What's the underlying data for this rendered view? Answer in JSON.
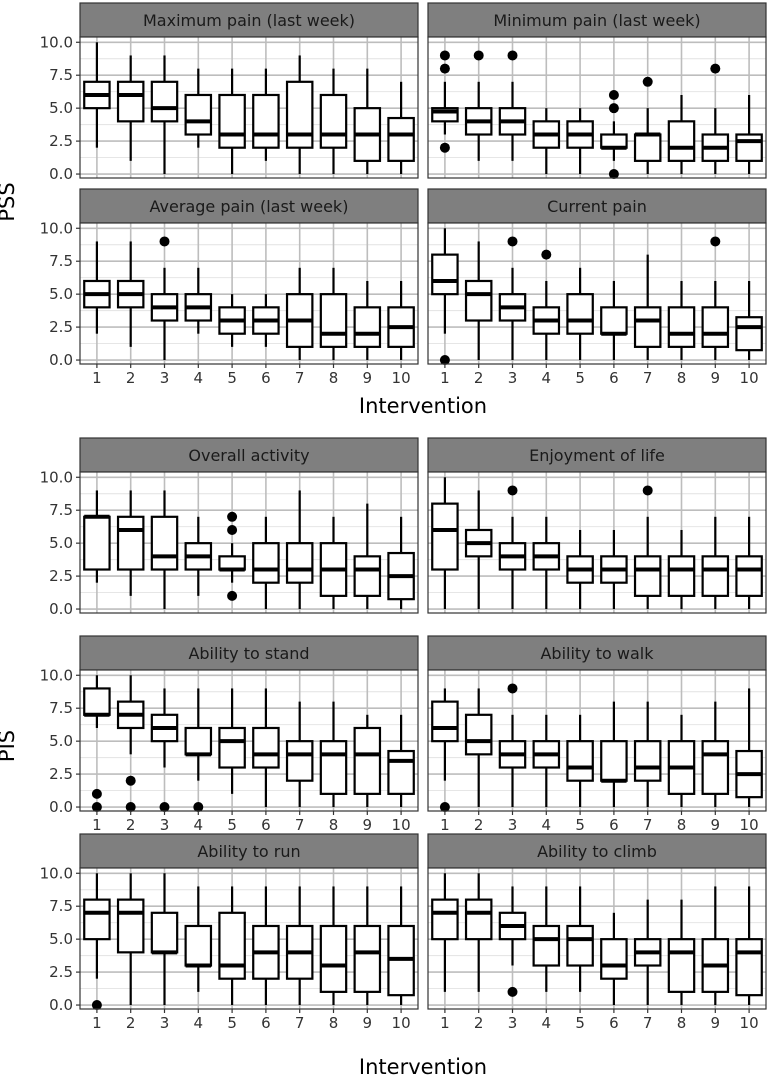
{
  "figure": {
    "top_block_ylabel": "PSS",
    "bottom_block_ylabel": "PIS",
    "xlabel": "Intervention"
  },
  "chart_data": [
    {
      "type": "boxplot",
      "title": "Maximum pain (last week)",
      "categories": [
        "1",
        "2",
        "3",
        "4",
        "5",
        "6",
        "7",
        "8",
        "9",
        "10"
      ],
      "yticks": [
        "0.0",
        "2.5",
        "5.0",
        "7.5",
        "10.0"
      ],
      "ylim": [
        -0.3,
        10.4
      ],
      "grid": true,
      "boxes": [
        {
          "min": 2,
          "q1": 5,
          "median": 6,
          "q3": 7,
          "max": 10,
          "outliers": []
        },
        {
          "min": 1,
          "q1": 4,
          "median": 6,
          "q3": 7,
          "max": 9,
          "outliers": []
        },
        {
          "min": 0,
          "q1": 4,
          "median": 5,
          "q3": 7,
          "max": 9,
          "outliers": []
        },
        {
          "min": 2,
          "q1": 3,
          "median": 4,
          "q3": 6,
          "max": 8,
          "outliers": []
        },
        {
          "min": 0,
          "q1": 2,
          "median": 3,
          "q3": 6,
          "max": 8,
          "outliers": []
        },
        {
          "min": 1,
          "q1": 2,
          "median": 3,
          "q3": 6,
          "max": 8,
          "outliers": []
        },
        {
          "min": 0,
          "q1": 2,
          "median": 3,
          "q3": 7,
          "max": 9,
          "outliers": []
        },
        {
          "min": 0,
          "q1": 2,
          "median": 3,
          "q3": 6,
          "max": 8,
          "outliers": []
        },
        {
          "min": 0,
          "q1": 1,
          "median": 3,
          "q3": 5,
          "max": 8,
          "outliers": []
        },
        {
          "min": 0,
          "q1": 1,
          "median": 3,
          "q3": 4.25,
          "max": 7,
          "outliers": []
        }
      ]
    },
    {
      "type": "boxplot",
      "title": "Minimum pain (last week)",
      "categories": [
        "1",
        "2",
        "3",
        "4",
        "5",
        "6",
        "7",
        "8",
        "9",
        "10"
      ],
      "yticks": [
        "0.0",
        "2.5",
        "5.0",
        "7.5",
        "10.0"
      ],
      "ylim": [
        -0.3,
        10.4
      ],
      "grid": true,
      "boxes": [
        {
          "min": 3,
          "q1": 4,
          "median": 4.75,
          "q3": 5,
          "max": 7,
          "outliers": [
            2,
            8,
            9
          ]
        },
        {
          "min": 1,
          "q1": 3,
          "median": 4,
          "q3": 5,
          "max": 7,
          "outliers": [
            9
          ]
        },
        {
          "min": 1,
          "q1": 3,
          "median": 4,
          "q3": 5,
          "max": 7,
          "outliers": [
            9
          ]
        },
        {
          "min": 0,
          "q1": 2,
          "median": 3,
          "q3": 4,
          "max": 5,
          "outliers": []
        },
        {
          "min": 0,
          "q1": 2,
          "median": 3,
          "q3": 4,
          "max": 5,
          "outliers": []
        },
        {
          "min": 1,
          "q1": 2,
          "median": 2,
          "q3": 3,
          "max": 4,
          "outliers": [
            0,
            5,
            6
          ]
        },
        {
          "min": 0,
          "q1": 1,
          "median": 3,
          "q3": 3,
          "max": 5,
          "outliers": [
            7
          ]
        },
        {
          "min": 0,
          "q1": 1,
          "median": 2,
          "q3": 4,
          "max": 6,
          "outliers": []
        },
        {
          "min": 0,
          "q1": 1,
          "median": 2,
          "q3": 3,
          "max": 5,
          "outliers": [
            8
          ]
        },
        {
          "min": 0,
          "q1": 1,
          "median": 2.5,
          "q3": 3,
          "max": 6,
          "outliers": []
        }
      ]
    },
    {
      "type": "boxplot",
      "title": "Average pain (last week)",
      "categories": [
        "1",
        "2",
        "3",
        "4",
        "5",
        "6",
        "7",
        "8",
        "9",
        "10"
      ],
      "yticks": [
        "0.0",
        "2.5",
        "5.0",
        "7.5",
        "10.0"
      ],
      "ylim": [
        -0.3,
        10.4
      ],
      "grid": true,
      "boxes": [
        {
          "min": 2,
          "q1": 4,
          "median": 5,
          "q3": 6,
          "max": 9,
          "outliers": []
        },
        {
          "min": 1,
          "q1": 4,
          "median": 5,
          "q3": 6,
          "max": 9,
          "outliers": []
        },
        {
          "min": 0,
          "q1": 3,
          "median": 4,
          "q3": 5,
          "max": 7,
          "outliers": [
            9
          ]
        },
        {
          "min": 2,
          "q1": 3,
          "median": 4,
          "q3": 5,
          "max": 7,
          "outliers": []
        },
        {
          "min": 1,
          "q1": 2,
          "median": 3,
          "q3": 4,
          "max": 5,
          "outliers": []
        },
        {
          "min": 1,
          "q1": 2,
          "median": 3,
          "q3": 4,
          "max": 5,
          "outliers": []
        },
        {
          "min": 0,
          "q1": 1,
          "median": 3,
          "q3": 5,
          "max": 7,
          "outliers": []
        },
        {
          "min": 0,
          "q1": 1,
          "median": 2,
          "q3": 5,
          "max": 7,
          "outliers": []
        },
        {
          "min": 0,
          "q1": 1,
          "median": 2,
          "q3": 4,
          "max": 6,
          "outliers": []
        },
        {
          "min": 0,
          "q1": 1,
          "median": 2.5,
          "q3": 4,
          "max": 6,
          "outliers": []
        }
      ]
    },
    {
      "type": "boxplot",
      "title": "Current pain",
      "categories": [
        "1",
        "2",
        "3",
        "4",
        "5",
        "6",
        "7",
        "8",
        "9",
        "10"
      ],
      "yticks": [
        "0.0",
        "2.5",
        "5.0",
        "7.5",
        "10.0"
      ],
      "ylim": [
        -0.3,
        10.4
      ],
      "grid": true,
      "boxes": [
        {
          "min": 2,
          "q1": 5,
          "median": 6,
          "q3": 8,
          "max": 10,
          "outliers": [
            0
          ]
        },
        {
          "min": 0,
          "q1": 3,
          "median": 5,
          "q3": 6,
          "max": 9,
          "outliers": []
        },
        {
          "min": 0,
          "q1": 3,
          "median": 4,
          "q3": 5,
          "max": 7,
          "outliers": [
            9
          ]
        },
        {
          "min": 0,
          "q1": 2,
          "median": 3,
          "q3": 4,
          "max": 6,
          "outliers": [
            8
          ]
        },
        {
          "min": 0,
          "q1": 2,
          "median": 3,
          "q3": 5,
          "max": 7,
          "outliers": []
        },
        {
          "min": 0,
          "q1": 2,
          "median": 2,
          "q3": 4,
          "max": 6,
          "outliers": []
        },
        {
          "min": 0,
          "q1": 1,
          "median": 3,
          "q3": 4,
          "max": 8,
          "outliers": []
        },
        {
          "min": 0,
          "q1": 1,
          "median": 2,
          "q3": 4,
          "max": 6,
          "outliers": []
        },
        {
          "min": 0,
          "q1": 1,
          "median": 2,
          "q3": 4,
          "max": 6,
          "outliers": [
            9
          ]
        },
        {
          "min": 0,
          "q1": 0.75,
          "median": 2.5,
          "q3": 3.25,
          "max": 6,
          "outliers": []
        }
      ]
    },
    {
      "type": "boxplot",
      "title": "Overall activity",
      "categories": [
        "1",
        "2",
        "3",
        "4",
        "5",
        "6",
        "7",
        "8",
        "9",
        "10"
      ],
      "yticks": [
        "0.0",
        "2.5",
        "5.0",
        "7.5",
        "10.0"
      ],
      "ylim": [
        -0.3,
        10.4
      ],
      "grid": true,
      "boxes": [
        {
          "min": 2,
          "q1": 3,
          "median": 7,
          "q3": 7,
          "max": 9,
          "outliers": []
        },
        {
          "min": 1,
          "q1": 3,
          "median": 6,
          "q3": 7,
          "max": 9,
          "outliers": []
        },
        {
          "min": 0,
          "q1": 3,
          "median": 4,
          "q3": 7,
          "max": 9,
          "outliers": []
        },
        {
          "min": 1,
          "q1": 3,
          "median": 4,
          "q3": 5,
          "max": 7,
          "outliers": []
        },
        {
          "min": 2,
          "q1": 3,
          "median": 3,
          "q3": 4,
          "max": 5,
          "outliers": [
            1,
            6,
            7
          ]
        },
        {
          "min": 0,
          "q1": 2,
          "median": 3,
          "q3": 5,
          "max": 7,
          "outliers": []
        },
        {
          "min": 0,
          "q1": 2,
          "median": 3,
          "q3": 5,
          "max": 9,
          "outliers": []
        },
        {
          "min": 0,
          "q1": 1,
          "median": 3,
          "q3": 5,
          "max": 7,
          "outliers": []
        },
        {
          "min": 0,
          "q1": 1,
          "median": 3,
          "q3": 4,
          "max": 8,
          "outliers": []
        },
        {
          "min": 0,
          "q1": 0.75,
          "median": 2.5,
          "q3": 4.25,
          "max": 7,
          "outliers": []
        }
      ]
    },
    {
      "type": "boxplot",
      "title": "Enjoyment of life",
      "categories": [
        "1",
        "2",
        "3",
        "4",
        "5",
        "6",
        "7",
        "8",
        "9",
        "10"
      ],
      "yticks": [
        "0.0",
        "2.5",
        "5.0",
        "7.5",
        "10.0"
      ],
      "ylim": [
        -0.3,
        10.4
      ],
      "grid": true,
      "boxes": [
        {
          "min": 0,
          "q1": 3,
          "median": 6,
          "q3": 8,
          "max": 10,
          "outliers": []
        },
        {
          "min": 0,
          "q1": 4,
          "median": 5,
          "q3": 6,
          "max": 9,
          "outliers": []
        },
        {
          "min": 0,
          "q1": 3,
          "median": 4,
          "q3": 5,
          "max": 7,
          "outliers": [
            9
          ]
        },
        {
          "min": 0,
          "q1": 3,
          "median": 4,
          "q3": 5,
          "max": 7,
          "outliers": []
        },
        {
          "min": 0,
          "q1": 2,
          "median": 3,
          "q3": 4,
          "max": 6,
          "outliers": []
        },
        {
          "min": 0,
          "q1": 2,
          "median": 3,
          "q3": 4,
          "max": 6,
          "outliers": []
        },
        {
          "min": 0,
          "q1": 1,
          "median": 3,
          "q3": 4,
          "max": 7,
          "outliers": [
            9
          ]
        },
        {
          "min": 0,
          "q1": 1,
          "median": 3,
          "q3": 4,
          "max": 6,
          "outliers": []
        },
        {
          "min": 0,
          "q1": 1,
          "median": 3,
          "q3": 4,
          "max": 7,
          "outliers": []
        },
        {
          "min": 0,
          "q1": 1,
          "median": 3,
          "q3": 4,
          "max": 7,
          "outliers": []
        }
      ]
    },
    {
      "type": "boxplot",
      "title": "Ability to stand",
      "categories": [
        "1",
        "2",
        "3",
        "4",
        "5",
        "6",
        "7",
        "8",
        "9",
        "10"
      ],
      "yticks": [
        "0.0",
        "2.5",
        "5.0",
        "7.5",
        "10.0"
      ],
      "ylim": [
        -0.3,
        10.4
      ],
      "grid": true,
      "boxes": [
        {
          "min": 6,
          "q1": 7,
          "median": 7,
          "q3": 9,
          "max": 10,
          "outliers": [
            0,
            1
          ]
        },
        {
          "min": 4,
          "q1": 6,
          "median": 7,
          "q3": 8,
          "max": 10,
          "outliers": [
            0,
            2
          ]
        },
        {
          "min": 3,
          "q1": 5,
          "median": 6,
          "q3": 7,
          "max": 9,
          "outliers": [
            0
          ]
        },
        {
          "min": 2,
          "q1": 4,
          "median": 4,
          "q3": 6,
          "max": 9,
          "outliers": [
            0
          ]
        },
        {
          "min": 1,
          "q1": 3,
          "median": 5,
          "q3": 6,
          "max": 9,
          "outliers": []
        },
        {
          "min": 0,
          "q1": 3,
          "median": 4,
          "q3": 6,
          "max": 9,
          "outliers": []
        },
        {
          "min": 0,
          "q1": 2,
          "median": 4,
          "q3": 5,
          "max": 8,
          "outliers": []
        },
        {
          "min": 0,
          "q1": 1,
          "median": 4,
          "q3": 5,
          "max": 8,
          "outliers": []
        },
        {
          "min": 0,
          "q1": 1,
          "median": 4,
          "q3": 6,
          "max": 7,
          "outliers": []
        },
        {
          "min": 0,
          "q1": 1,
          "median": 3.5,
          "q3": 4.25,
          "max": 7,
          "outliers": []
        }
      ]
    },
    {
      "type": "boxplot",
      "title": "Ability to walk",
      "categories": [
        "1",
        "2",
        "3",
        "4",
        "5",
        "6",
        "7",
        "8",
        "9",
        "10"
      ],
      "yticks": [
        "0.0",
        "2.5",
        "5.0",
        "7.5",
        "10.0"
      ],
      "ylim": [
        -0.3,
        10.4
      ],
      "grid": true,
      "boxes": [
        {
          "min": 2,
          "q1": 5,
          "median": 6,
          "q3": 8,
          "max": 9,
          "outliers": [
            0
          ]
        },
        {
          "min": 0,
          "q1": 4,
          "median": 5,
          "q3": 7,
          "max": 9,
          "outliers": []
        },
        {
          "min": 0,
          "q1": 3,
          "median": 4,
          "q3": 5,
          "max": 7,
          "outliers": [
            9
          ]
        },
        {
          "min": 0,
          "q1": 3,
          "median": 4,
          "q3": 5,
          "max": 7,
          "outliers": []
        },
        {
          "min": 0,
          "q1": 2,
          "median": 3,
          "q3": 5,
          "max": 7,
          "outliers": []
        },
        {
          "min": 0,
          "q1": 2,
          "median": 2,
          "q3": 5,
          "max": 8,
          "outliers": []
        },
        {
          "min": 0,
          "q1": 2,
          "median": 3,
          "q3": 5,
          "max": 8,
          "outliers": []
        },
        {
          "min": 0,
          "q1": 1,
          "median": 3,
          "q3": 5,
          "max": 7,
          "outliers": []
        },
        {
          "min": 0,
          "q1": 1,
          "median": 4,
          "q3": 5,
          "max": 8,
          "outliers": []
        },
        {
          "min": 0,
          "q1": 0.75,
          "median": 2.5,
          "q3": 4.25,
          "max": 9,
          "outliers": []
        }
      ]
    },
    {
      "type": "boxplot",
      "title": "Ability to run",
      "categories": [
        "1",
        "2",
        "3",
        "4",
        "5",
        "6",
        "7",
        "8",
        "9",
        "10"
      ],
      "yticks": [
        "0.0",
        "2.5",
        "5.0",
        "7.5",
        "10.0"
      ],
      "ylim": [
        -0.3,
        10.4
      ],
      "grid": true,
      "boxes": [
        {
          "min": 2,
          "q1": 5,
          "median": 7,
          "q3": 8,
          "max": 10,
          "outliers": [
            0
          ]
        },
        {
          "min": 0,
          "q1": 4,
          "median": 7,
          "q3": 8,
          "max": 10,
          "outliers": []
        },
        {
          "min": 0,
          "q1": 4,
          "median": 4,
          "q3": 7,
          "max": 10,
          "outliers": []
        },
        {
          "min": 1,
          "q1": 3,
          "median": 3,
          "q3": 6,
          "max": 9,
          "outliers": []
        },
        {
          "min": 0,
          "q1": 2,
          "median": 3,
          "q3": 7,
          "max": 9,
          "outliers": []
        },
        {
          "min": 0,
          "q1": 2,
          "median": 4,
          "q3": 6,
          "max": 9,
          "outliers": []
        },
        {
          "min": 0,
          "q1": 2,
          "median": 4,
          "q3": 6,
          "max": 9,
          "outliers": []
        },
        {
          "min": 0,
          "q1": 1,
          "median": 3,
          "q3": 6,
          "max": 9,
          "outliers": []
        },
        {
          "min": 0,
          "q1": 1,
          "median": 4,
          "q3": 6,
          "max": 9,
          "outliers": []
        },
        {
          "min": 0,
          "q1": 0.75,
          "median": 3.5,
          "q3": 6,
          "max": 9,
          "outliers": []
        }
      ]
    },
    {
      "type": "boxplot",
      "title": "Ability to climb",
      "categories": [
        "1",
        "2",
        "3",
        "4",
        "5",
        "6",
        "7",
        "8",
        "9",
        "10"
      ],
      "yticks": [
        "0.0",
        "2.5",
        "5.0",
        "7.5",
        "10.0"
      ],
      "ylim": [
        -0.3,
        10.4
      ],
      "grid": true,
      "boxes": [
        {
          "min": 1,
          "q1": 5,
          "median": 7,
          "q3": 8,
          "max": 10,
          "outliers": []
        },
        {
          "min": 1,
          "q1": 5,
          "median": 7,
          "q3": 8,
          "max": 10,
          "outliers": []
        },
        {
          "min": 3,
          "q1": 5,
          "median": 6,
          "q3": 7,
          "max": 9,
          "outliers": [
            1
          ]
        },
        {
          "min": 1,
          "q1": 3,
          "median": 5,
          "q3": 6,
          "max": 9,
          "outliers": []
        },
        {
          "min": 1,
          "q1": 3,
          "median": 5,
          "q3": 6,
          "max": 9,
          "outliers": []
        },
        {
          "min": 0,
          "q1": 2,
          "median": 3,
          "q3": 5,
          "max": 7,
          "outliers": []
        },
        {
          "min": 0,
          "q1": 3,
          "median": 4,
          "q3": 5,
          "max": 8,
          "outliers": []
        },
        {
          "min": 0,
          "q1": 1,
          "median": 4,
          "q3": 5,
          "max": 8,
          "outliers": []
        },
        {
          "min": 0,
          "q1": 1,
          "median": 3,
          "q3": 5,
          "max": 9,
          "outliers": []
        },
        {
          "min": 0,
          "q1": 0.75,
          "median": 4,
          "q3": 5,
          "max": 9,
          "outliers": []
        }
      ]
    }
  ]
}
